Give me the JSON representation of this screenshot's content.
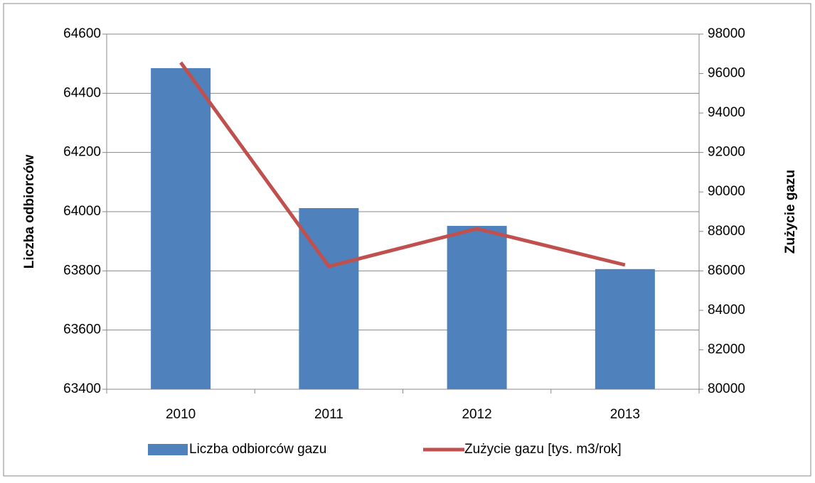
{
  "chart_data": {
    "type": "bar_line",
    "categories": [
      "2010",
      "2011",
      "2012",
      "2013"
    ],
    "series": [
      {
        "name": "Liczba odbiorców gazu",
        "color": "#4f81bd",
        "type": "bar",
        "values": [
          64485,
          64012,
          63952,
          63806
        ]
      },
      {
        "name": "Zużycie gazu [tys. m3/rok]",
        "color": "#c0504d",
        "type": "line",
        "axis": "y2",
        "values": [
          96560,
          86228,
          88136,
          86300
        ]
      }
    ],
    "ylabel": "Liczba odbiorców",
    "y2label": "Zużycie gazu",
    "ylim": [
      63400,
      64600
    ],
    "yticks": [
      63400,
      63600,
      63800,
      64000,
      64200,
      64400,
      64600
    ],
    "y2lim": [
      80000,
      98000
    ],
    "y2ticks": [
      80000,
      82000,
      84000,
      86000,
      88000,
      90000,
      92000,
      94000,
      96000,
      98000
    ],
    "grid": true,
    "legend": "bottom"
  }
}
